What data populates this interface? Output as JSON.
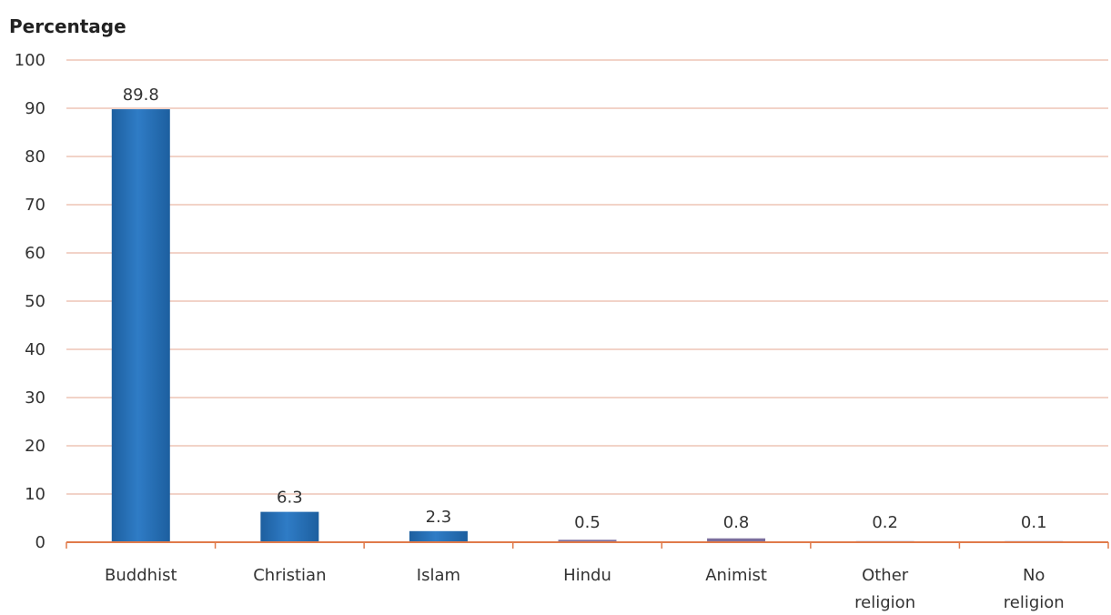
{
  "chart_data": {
    "type": "bar",
    "title": "",
    "ylabel": "Percentage",
    "xlabel": "",
    "ylim": [
      0,
      100
    ],
    "yticks": [
      0,
      10,
      20,
      30,
      40,
      50,
      60,
      70,
      80,
      90,
      100
    ],
    "grid": true,
    "categories": [
      [
        "Buddhist"
      ],
      [
        "Christian"
      ],
      [
        "Islam"
      ],
      [
        "Hindu"
      ],
      [
        "Animist"
      ],
      [
        "Other",
        "religion"
      ],
      [
        "No",
        "religion"
      ]
    ],
    "values": [
      89.8,
      6.3,
      2.3,
      0.5,
      0.8,
      0.2,
      0.1
    ],
    "value_labels": [
      "89.8",
      "6.3",
      "2.3",
      "0.5",
      "0.8",
      "0.2",
      "0.1"
    ],
    "colors": {
      "bar": "#2f7cc6",
      "bar_dark": "#1d5f9f",
      "bar_small": "#7b6f9e",
      "grid": "#e9b9a8",
      "axis": "#e07a4a"
    }
  }
}
